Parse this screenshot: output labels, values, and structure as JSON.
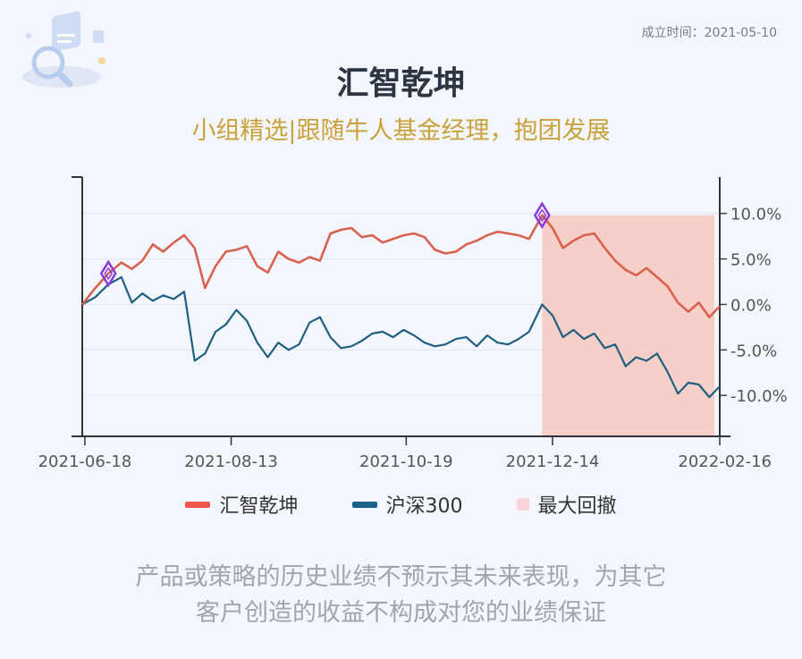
{
  "header": {
    "founded": "成立时间：2021-05-10",
    "title": "汇智乾坤",
    "subtitle": "小组精选|跟随牛人基金经理，抱团发展"
  },
  "footer": {
    "disclaimer_line1": "产品或策略的历史业绩不预示其未来表现，为其它",
    "disclaimer_line2": "客户创造的收益不构成对您的业绩保证"
  },
  "colors": {
    "fund": "#d9614f",
    "index": "#1f6080",
    "drawdown": "#f6cfc9",
    "marker": "#8a3ad8"
  },
  "chart_data": {
    "type": "line",
    "x_ticks": [
      "2021-06-18",
      "2021-08-13",
      "2021-10-19",
      "2021-12-14",
      "2022-02-16"
    ],
    "x_range": [
      "2021-06-17",
      "2022-02-16"
    ],
    "y_ticks": [
      "10.0%",
      "5.0%",
      "0.0%",
      "-5.0%",
      "-10.0%"
    ],
    "ylim": [
      -14.5,
      14
    ],
    "y_axis_side": "right",
    "legend": [
      "汇智乾坤",
      "沪深300",
      "最大回撤"
    ],
    "legend_placement": "bottom",
    "drawdown_range": [
      "2021-12-10",
      "2022-02-14"
    ],
    "markers": [
      {
        "date": "2021-06-27",
        "value": 3.4
      },
      {
        "date": "2021-12-10",
        "value": 9.8
      }
    ],
    "series": [
      {
        "name": "汇智乾坤",
        "color": "#d9614f",
        "points": [
          [
            "2021-06-17",
            0.0
          ],
          [
            "2021-06-22",
            1.8
          ],
          [
            "2021-06-27",
            3.4
          ],
          [
            "2021-07-02",
            4.6
          ],
          [
            "2021-07-06",
            3.9
          ],
          [
            "2021-07-10",
            4.8
          ],
          [
            "2021-07-14",
            6.6
          ],
          [
            "2021-07-18",
            5.8
          ],
          [
            "2021-07-22",
            6.8
          ],
          [
            "2021-07-26",
            7.6
          ],
          [
            "2021-07-30",
            6.2
          ],
          [
            "2021-08-03",
            1.8
          ],
          [
            "2021-08-07",
            4.2
          ],
          [
            "2021-08-11",
            5.8
          ],
          [
            "2021-08-15",
            6.0
          ],
          [
            "2021-08-19",
            6.4
          ],
          [
            "2021-08-23",
            4.2
          ],
          [
            "2021-08-27",
            3.5
          ],
          [
            "2021-08-31",
            5.8
          ],
          [
            "2021-09-04",
            5.0
          ],
          [
            "2021-09-08",
            4.6
          ],
          [
            "2021-09-12",
            5.2
          ],
          [
            "2021-09-16",
            4.8
          ],
          [
            "2021-09-20",
            7.8
          ],
          [
            "2021-09-24",
            8.2
          ],
          [
            "2021-09-28",
            8.4
          ],
          [
            "2021-10-02",
            7.4
          ],
          [
            "2021-10-06",
            7.6
          ],
          [
            "2021-10-10",
            6.8
          ],
          [
            "2021-10-14",
            7.2
          ],
          [
            "2021-10-18",
            7.6
          ],
          [
            "2021-10-22",
            7.8
          ],
          [
            "2021-10-26",
            7.4
          ],
          [
            "2021-10-30",
            6.0
          ],
          [
            "2021-11-03",
            5.6
          ],
          [
            "2021-11-07",
            5.8
          ],
          [
            "2021-11-11",
            6.6
          ],
          [
            "2021-11-15",
            7.0
          ],
          [
            "2021-11-19",
            7.6
          ],
          [
            "2021-11-23",
            8.0
          ],
          [
            "2021-11-27",
            7.8
          ],
          [
            "2021-12-01",
            7.6
          ],
          [
            "2021-12-05",
            7.2
          ],
          [
            "2021-12-10",
            9.8
          ],
          [
            "2021-12-14",
            8.4
          ],
          [
            "2021-12-18",
            6.2
          ],
          [
            "2021-12-22",
            7.0
          ],
          [
            "2021-12-26",
            7.6
          ],
          [
            "2021-12-30",
            7.8
          ],
          [
            "2022-01-03",
            6.2
          ],
          [
            "2022-01-07",
            4.8
          ],
          [
            "2022-01-11",
            3.8
          ],
          [
            "2022-01-15",
            3.2
          ],
          [
            "2022-01-19",
            4.0
          ],
          [
            "2022-01-23",
            3.0
          ],
          [
            "2022-01-27",
            2.0
          ],
          [
            "2022-01-31",
            0.2
          ],
          [
            "2022-02-04",
            -0.8
          ],
          [
            "2022-02-08",
            0.2
          ],
          [
            "2022-02-12",
            -1.4
          ],
          [
            "2022-02-16",
            -0.2
          ]
        ]
      },
      {
        "name": "沪深300",
        "color": "#1f6080",
        "points": [
          [
            "2021-06-17",
            0.0
          ],
          [
            "2021-06-22",
            0.8
          ],
          [
            "2021-06-27",
            2.2
          ],
          [
            "2021-07-02",
            3.0
          ],
          [
            "2021-07-06",
            0.2
          ],
          [
            "2021-07-10",
            1.2
          ],
          [
            "2021-07-14",
            0.4
          ],
          [
            "2021-07-18",
            1.0
          ],
          [
            "2021-07-22",
            0.6
          ],
          [
            "2021-07-26",
            1.4
          ],
          [
            "2021-07-30",
            -6.2
          ],
          [
            "2021-08-03",
            -5.4
          ],
          [
            "2021-08-07",
            -3.0
          ],
          [
            "2021-08-11",
            -2.2
          ],
          [
            "2021-08-15",
            -0.6
          ],
          [
            "2021-08-19",
            -1.8
          ],
          [
            "2021-08-23",
            -4.2
          ],
          [
            "2021-08-27",
            -5.8
          ],
          [
            "2021-08-31",
            -4.2
          ],
          [
            "2021-09-04",
            -5.0
          ],
          [
            "2021-09-08",
            -4.4
          ],
          [
            "2021-09-12",
            -2.0
          ],
          [
            "2021-09-16",
            -1.4
          ],
          [
            "2021-09-20",
            -3.6
          ],
          [
            "2021-09-24",
            -4.8
          ],
          [
            "2021-09-28",
            -4.6
          ],
          [
            "2021-10-02",
            -4.0
          ],
          [
            "2021-10-06",
            -3.2
          ],
          [
            "2021-10-10",
            -3.0
          ],
          [
            "2021-10-14",
            -3.6
          ],
          [
            "2021-10-18",
            -2.8
          ],
          [
            "2021-10-22",
            -3.4
          ],
          [
            "2021-10-26",
            -4.2
          ],
          [
            "2021-10-30",
            -4.6
          ],
          [
            "2021-11-03",
            -4.4
          ],
          [
            "2021-11-07",
            -3.8
          ],
          [
            "2021-11-11",
            -3.6
          ],
          [
            "2021-11-15",
            -4.6
          ],
          [
            "2021-11-19",
            -3.4
          ],
          [
            "2021-11-23",
            -4.2
          ],
          [
            "2021-11-27",
            -4.4
          ],
          [
            "2021-12-01",
            -3.8
          ],
          [
            "2021-12-05",
            -3.0
          ],
          [
            "2021-12-10",
            0.0
          ],
          [
            "2021-12-14",
            -1.2
          ],
          [
            "2021-12-18",
            -3.6
          ],
          [
            "2021-12-22",
            -2.8
          ],
          [
            "2021-12-26",
            -3.8
          ],
          [
            "2021-12-30",
            -3.2
          ],
          [
            "2022-01-03",
            -4.8
          ],
          [
            "2022-01-07",
            -4.4
          ],
          [
            "2022-01-11",
            -6.8
          ],
          [
            "2022-01-15",
            -5.8
          ],
          [
            "2022-01-19",
            -6.2
          ],
          [
            "2022-01-23",
            -5.4
          ],
          [
            "2022-01-27",
            -7.4
          ],
          [
            "2022-01-31",
            -9.8
          ],
          [
            "2022-02-04",
            -8.6
          ],
          [
            "2022-02-08",
            -8.8
          ],
          [
            "2022-02-12",
            -10.2
          ],
          [
            "2022-02-16",
            -9.0
          ]
        ]
      }
    ]
  }
}
